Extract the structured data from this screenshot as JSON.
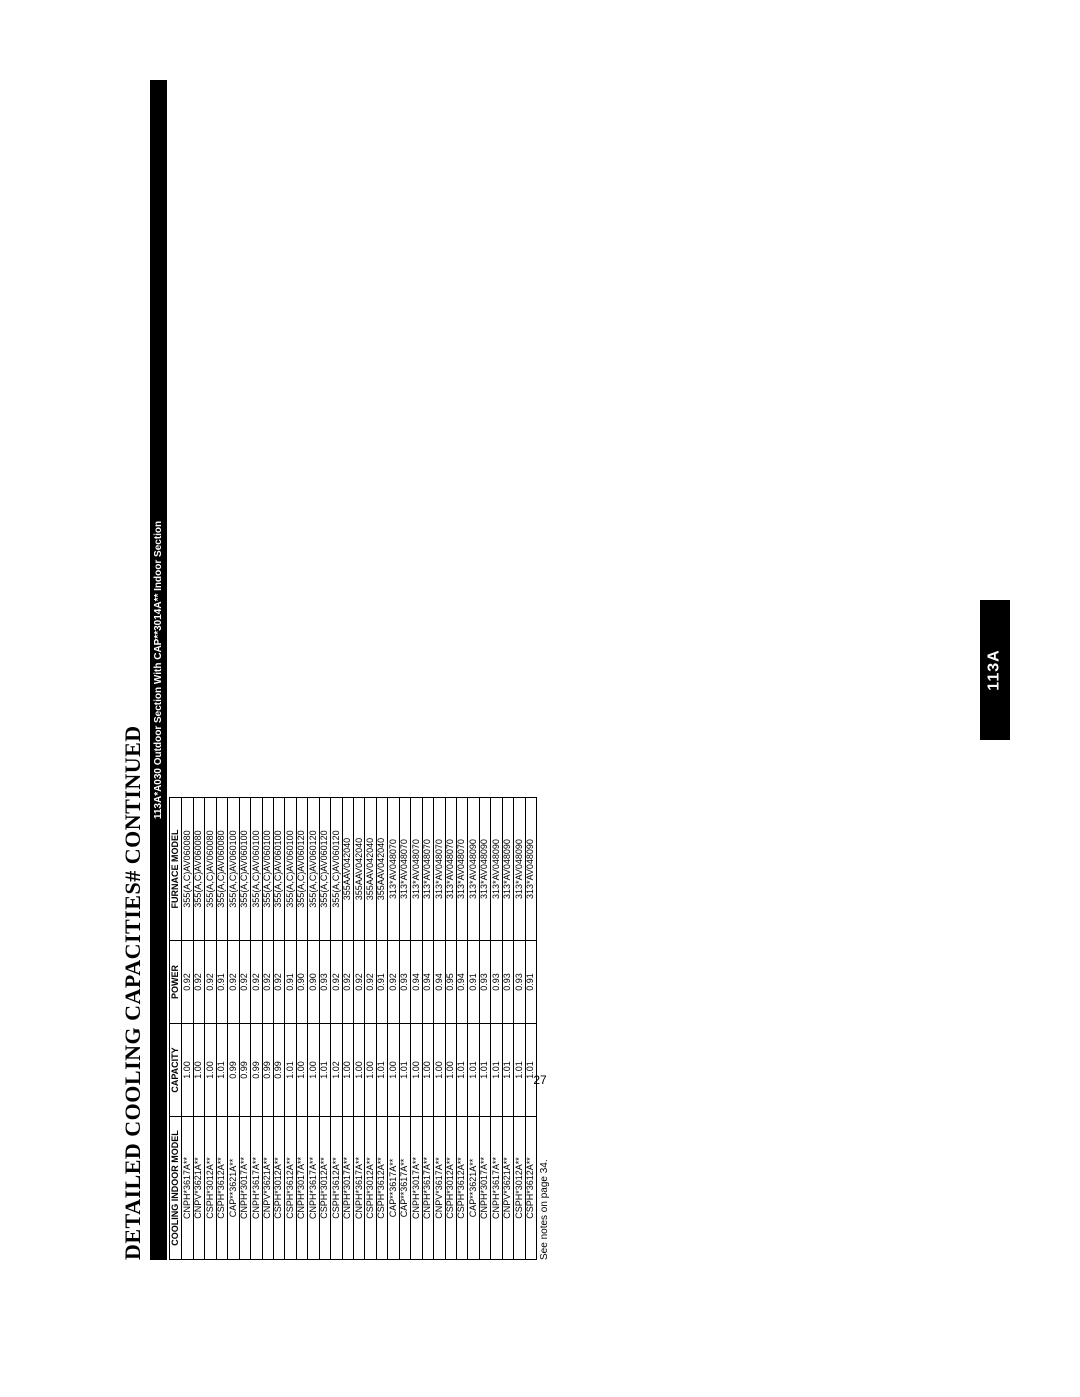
{
  "title": "DETAILED COOLING CAPACITIES# CONTINUED",
  "section_bar": "113A*A030 Outdoor Section With CAP**3014A** Indoor Section",
  "side_tab": "113A",
  "page_number": "27",
  "footnote": "See notes on page 34.",
  "table": {
    "headers": {
      "model": "COOLING INDOOR MODEL",
      "capacity": "CAPACITY",
      "power": "POWER",
      "furnace": "FURNACE MODEL"
    },
    "rows": [
      {
        "model": "CNPH*3617A**",
        "capacity": "1.00",
        "power": "0.92",
        "furnace": "355(A,C)AV060080"
      },
      {
        "model": "CNPV*3621A**",
        "capacity": "1.00",
        "power": "0.92",
        "furnace": "355(A,C)AV060080"
      },
      {
        "model": "CSPH*3012A**",
        "capacity": "1.00",
        "power": "0.92",
        "furnace": "355(A,C)AV060080"
      },
      {
        "model": "CSPH*3612A**",
        "capacity": "1.01",
        "power": "0.91",
        "furnace": "355(A,C)AV060080"
      },
      {
        "model": "CAP**3621A**",
        "capacity": "0.99",
        "power": "0.92",
        "furnace": "355(A,C)AV060100"
      },
      {
        "model": "CNPH*3017A**",
        "capacity": "0.99",
        "power": "0.92",
        "furnace": "355(A,C)AV060100"
      },
      {
        "model": "CNPH*3617A**",
        "capacity": "0.99",
        "power": "0.92",
        "furnace": "355(A,C)AV060100"
      },
      {
        "model": "CNPV*3621A**",
        "capacity": "0.99",
        "power": "0.92",
        "furnace": "355(A,C)AV060100"
      },
      {
        "model": "CSPH*3012A**",
        "capacity": "0.99",
        "power": "0.92",
        "furnace": "355(A,C)AV060100"
      },
      {
        "model": "CSPH*3612A**",
        "capacity": "1.01",
        "power": "0.91",
        "furnace": "355(A,C)AV060100"
      },
      {
        "model": "CNPH*3017A**",
        "capacity": "1.00",
        "power": "0.90",
        "furnace": "355(A,C)AV060120"
      },
      {
        "model": "CNPH*3617A**",
        "capacity": "1.00",
        "power": "0.90",
        "furnace": "355(A,C)AV060120"
      },
      {
        "model": "CSPH*3012A**",
        "capacity": "1.01",
        "power": "0.93",
        "furnace": "355(A,C)AV060120"
      },
      {
        "model": "CSPH*3612A**",
        "capacity": "1.02",
        "power": "0.92",
        "furnace": "355(A,C)AV060120"
      },
      {
        "model": "CNPH*3017A**",
        "capacity": "1.00",
        "power": "0.92",
        "furnace": "355AAV042040"
      },
      {
        "model": "CNPH*3617A**",
        "capacity": "1.00",
        "power": "0.92",
        "furnace": "355AAV042040"
      },
      {
        "model": "CSPH*3012A**",
        "capacity": "1.00",
        "power": "0.92",
        "furnace": "355AAV042040"
      },
      {
        "model": "CSPH*3612A**",
        "capacity": "1.01",
        "power": "0.91",
        "furnace": "355AAV042040"
      },
      {
        "model": "CAP**3617A**",
        "capacity": "1.00",
        "power": "0.92",
        "furnace": "313*AV048070"
      },
      {
        "model": "CAP**3617A**",
        "capacity": "1.01",
        "power": "0.93",
        "furnace": "313*AV048070"
      },
      {
        "model": "CNPH*3017A**",
        "capacity": "1.00",
        "power": "0.94",
        "furnace": "313*AV048070"
      },
      {
        "model": "CNPH*3617A**",
        "capacity": "1.00",
        "power": "0.94",
        "furnace": "313*AV048070"
      },
      {
        "model": "CNPV*3617A**",
        "capacity": "1.00",
        "power": "0.94",
        "furnace": "313*AV048070"
      },
      {
        "model": "CSPH*3012A**",
        "capacity": "1.00",
        "power": "0.95",
        "furnace": "313*AV048070"
      },
      {
        "model": "CSPH*3612A**",
        "capacity": "1.01",
        "power": "0.94",
        "furnace": "313*AV048070"
      },
      {
        "model": "CAP**3621A**",
        "capacity": "1.01",
        "power": "0.91",
        "furnace": "313*AV048090"
      },
      {
        "model": "CNPH*3017A**",
        "capacity": "1.01",
        "power": "0.93",
        "furnace": "313*AV048090"
      },
      {
        "model": "CNPH*3617A**",
        "capacity": "1.01",
        "power": "0.93",
        "furnace": "313*AV048090"
      },
      {
        "model": "CNPV*3621A**",
        "capacity": "1.01",
        "power": "0.93",
        "furnace": "313*AV048090"
      },
      {
        "model": "CSPH*3012A**",
        "capacity": "1.01",
        "power": "0.93",
        "furnace": "313*AV048090"
      },
      {
        "model": "CSPH*3612A**",
        "capacity": "1.01",
        "power": "0.91",
        "furnace": "313*AV048090"
      }
    ]
  }
}
